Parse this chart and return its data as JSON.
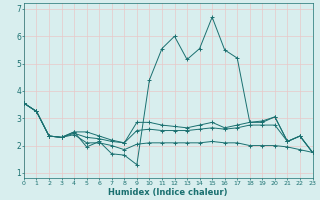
{
  "xlabel": "Humidex (Indice chaleur)",
  "background_color": "#d8eeee",
  "grid_color": "#c8d8d8",
  "line_color": "#1a7070",
  "xlim": [
    0,
    23
  ],
  "ylim": [
    0.8,
    7.2
  ],
  "xticks": [
    0,
    1,
    2,
    3,
    4,
    5,
    6,
    7,
    8,
    9,
    10,
    11,
    12,
    13,
    14,
    15,
    16,
    17,
    18,
    19,
    20,
    21,
    22,
    23
  ],
  "yticks": [
    1,
    2,
    3,
    4,
    5,
    6,
    7
  ],
  "series": [
    [
      3.55,
      3.25,
      2.35,
      2.3,
      2.5,
      1.95,
      2.15,
      1.7,
      1.65,
      1.3,
      4.4,
      5.55,
      6.0,
      5.15,
      5.55,
      6.7,
      5.5,
      5.2,
      2.85,
      2.85,
      3.05,
      2.15,
      2.35,
      1.75
    ],
    [
      3.55,
      3.25,
      2.35,
      2.3,
      2.5,
      2.5,
      2.35,
      2.2,
      2.1,
      2.85,
      2.85,
      2.75,
      2.7,
      2.65,
      2.75,
      2.85,
      2.65,
      2.75,
      2.85,
      2.9,
      3.05,
      2.15,
      2.35,
      1.75
    ],
    [
      3.55,
      3.25,
      2.35,
      2.3,
      2.45,
      2.3,
      2.25,
      2.15,
      2.1,
      2.55,
      2.6,
      2.55,
      2.55,
      2.55,
      2.6,
      2.65,
      2.6,
      2.65,
      2.75,
      2.75,
      2.75,
      2.15,
      2.35,
      1.75
    ],
    [
      3.55,
      3.25,
      2.35,
      2.3,
      2.4,
      2.1,
      2.1,
      2.0,
      1.85,
      2.05,
      2.1,
      2.1,
      2.1,
      2.1,
      2.1,
      2.15,
      2.1,
      2.1,
      2.0,
      2.0,
      2.0,
      1.95,
      1.85,
      1.75
    ]
  ],
  "marker_size": 2.5,
  "line_width": 0.7
}
